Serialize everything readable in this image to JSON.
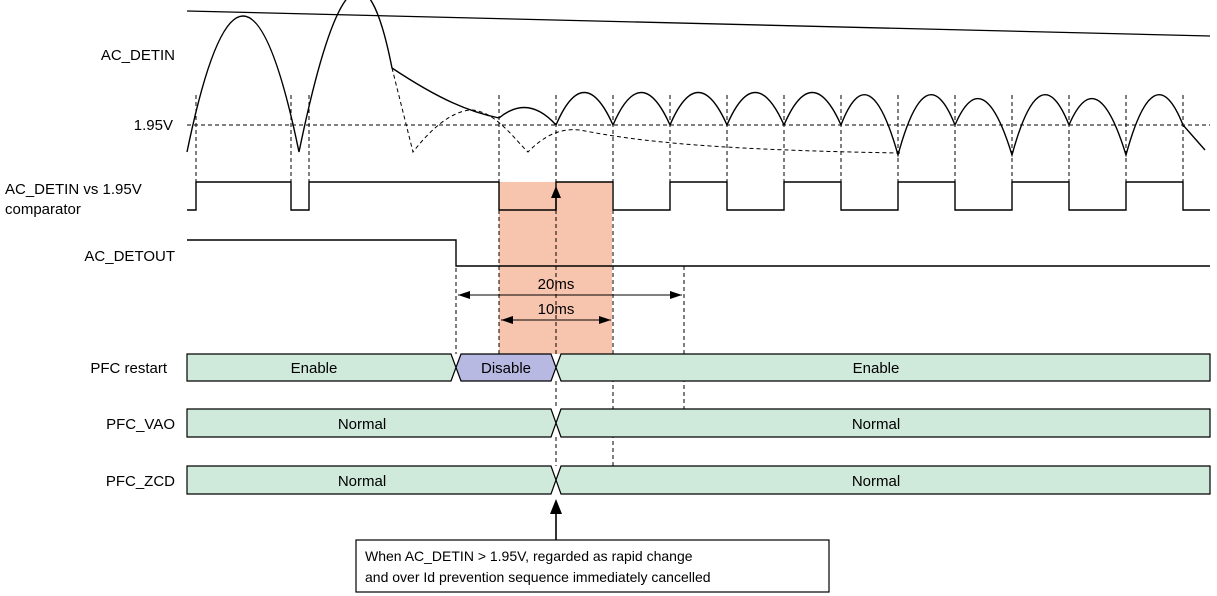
{
  "labels": {
    "ac_detin": "AC_DETIN",
    "voltage": "1.95V",
    "comparator_line1": "AC_DETIN vs 1.95V",
    "comparator_line2": "comparator",
    "ac_detout": "AC_DETOUT",
    "pfc_restart": "PFC restart",
    "pfc_vao": "PFC_VAO",
    "pfc_zcd": "PFC_ZCD"
  },
  "timing": {
    "t20": "20ms",
    "t10": "10ms"
  },
  "states": {
    "restart_before": "Enable",
    "restart_mid": "Disable",
    "restart_after": "Enable",
    "vao_before": "Normal",
    "vao_after": "Normal",
    "zcd_before": "Normal",
    "zcd_after": "Normal"
  },
  "note": {
    "line1": "When AC_DETIN > 1.95V, regarded as rapid change",
    "line2": "and over Id prevention sequence immediately cancelled"
  },
  "colors": {
    "voltage_label": "#e8202a",
    "highlight": "#f7c4ae",
    "bus_fill": "#cfe9da",
    "disable_fill": "#b7b9e2"
  }
}
